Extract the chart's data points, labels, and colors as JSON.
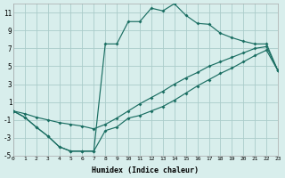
{
  "xlabel": "Humidex (Indice chaleur)",
  "bg_color": "#d8eeec",
  "grid_color": "#aaccca",
  "line_color": "#1a6e62",
  "curve1_x": [
    0,
    1,
    2,
    3,
    4,
    5,
    6,
    7,
    8,
    9,
    10,
    11,
    12,
    13,
    14,
    15,
    16,
    17,
    18,
    19,
    20,
    21,
    22,
    23
  ],
  "curve1_y": [
    0,
    -0.7,
    -1.8,
    -2.8,
    -4.0,
    -4.5,
    -4.5,
    -4.5,
    7.5,
    7.5,
    10.0,
    10.0,
    11.5,
    11.2,
    12.0,
    10.7,
    9.8,
    9.7,
    8.7,
    8.2,
    7.8,
    7.5,
    7.5,
    4.5
  ],
  "curve2_x": [
    0,
    1,
    2,
    3,
    4,
    5,
    6,
    7,
    8,
    9,
    10,
    11,
    12,
    13,
    14,
    15,
    16,
    17,
    18,
    19,
    20,
    21,
    22,
    23
  ],
  "curve2_y": [
    0,
    -0.7,
    -1.8,
    -2.8,
    -4.0,
    -4.5,
    -4.5,
    -4.5,
    -2.2,
    -1.8,
    -0.8,
    -0.5,
    0.0,
    0.5,
    1.2,
    2.0,
    2.8,
    3.5,
    4.2,
    4.8,
    5.5,
    6.2,
    6.8,
    4.5
  ],
  "curve3_x": [
    0,
    1,
    2,
    3,
    4,
    5,
    6,
    7,
    8,
    9,
    10,
    11,
    12,
    13,
    14,
    15,
    16,
    17,
    18,
    19,
    20,
    21,
    22,
    23
  ],
  "curve3_y": [
    0,
    -0.3,
    -0.7,
    -1.0,
    -1.3,
    -1.5,
    -1.7,
    -2.0,
    -1.5,
    -0.8,
    0.0,
    0.8,
    1.5,
    2.2,
    3.0,
    3.7,
    4.3,
    5.0,
    5.5,
    6.0,
    6.5,
    7.0,
    7.2,
    4.5
  ],
  "xlim": [
    0,
    23
  ],
  "ylim": [
    -5,
    12
  ],
  "xticks": [
    0,
    1,
    2,
    3,
    4,
    5,
    6,
    7,
    8,
    9,
    10,
    11,
    12,
    13,
    14,
    15,
    16,
    17,
    18,
    19,
    20,
    21,
    22,
    23
  ],
  "yticks": [
    -5,
    -3,
    -1,
    1,
    3,
    5,
    7,
    9,
    11
  ]
}
